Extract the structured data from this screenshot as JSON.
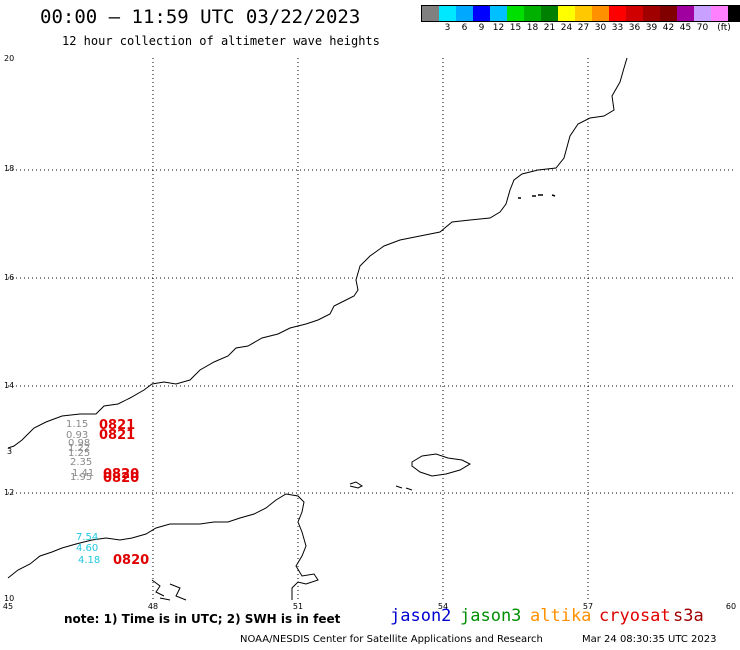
{
  "header": {
    "title": "00:00 – 11:59 UTC 03/22/2023",
    "subtitle": "12 hour collection of altimeter wave heights"
  },
  "colorbar": {
    "colors": [
      "#808080",
      "#00e8ff",
      "#00a8ff",
      "#0000ff",
      "#00c0ff",
      "#00e000",
      "#00b000",
      "#008000",
      "#ffff00",
      "#ffc800",
      "#ff9000",
      "#ff0000",
      "#d00000",
      "#a00000",
      "#800000",
      "#a000a0",
      "#c8a0ff",
      "#ff80ff",
      "#000000"
    ],
    "labels": [
      "3",
      "6",
      "9",
      "12",
      "15",
      "18",
      "21",
      "24",
      "27",
      "30",
      "33",
      "36",
      "39",
      "42",
      "45",
      "70"
    ],
    "unit": "(ft)"
  },
  "axes": {
    "y_ticks": [
      "20",
      "18",
      "16",
      "14",
      "12",
      "10"
    ],
    "x_ticks": [
      "45",
      "48",
      "51",
      "54",
      "57",
      "60"
    ],
    "partial_label": "3"
  },
  "observations": {
    "grey_values": [
      "1.15",
      "0.93",
      "0.98",
      "1.22",
      "1.25",
      "2.35",
      "1.41",
      "1.95"
    ],
    "cyan_values": [
      "7.54",
      "4.60",
      "4.18"
    ],
    "time_labels": [
      "0821",
      "0821",
      "0820",
      "0820",
      "0820"
    ]
  },
  "legend": {
    "note": "note:  1) Time is in UTC;  2) SWH is in feet",
    "satellites": [
      {
        "name": "jason2",
        "color": "#0000d0"
      },
      {
        "name": "jason3",
        "color": "#009000"
      },
      {
        "name": "altika",
        "color": "#ff9000"
      },
      {
        "name": "cryosat",
        "color": "#e00000"
      },
      {
        "name": "s3a",
        "color": "#a00000"
      }
    ]
  },
  "footer": {
    "credit": "NOAA/NESDIS Center for Satellite Applications and Research",
    "generated": "Mar 24 08:30:35 UTC 2023"
  }
}
